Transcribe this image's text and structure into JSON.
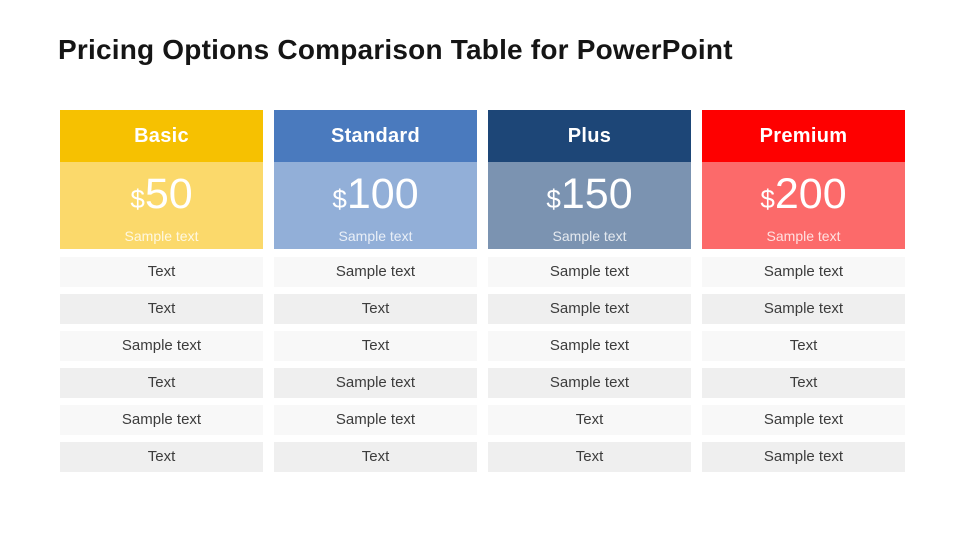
{
  "page": {
    "title": "Pricing Options Comparison Table for PowerPoint",
    "background_color": "#ffffff",
    "title_color": "#151515"
  },
  "table": {
    "row_light_color": "#f8f8f8",
    "row_dark_color": "#efefef",
    "row_text_color": "#3c3c3c"
  },
  "plans": [
    {
      "name": "Basic",
      "currency": "$",
      "price": "50",
      "subtitle": "Sample text",
      "header_color": "#f6c101",
      "body_color": "#fbd96b",
      "features": [
        "Text",
        "Text",
        "Sample text",
        "Text",
        "Sample text",
        "Text"
      ]
    },
    {
      "name": "Standard",
      "currency": "$",
      "price": "100",
      "subtitle": "Sample text",
      "header_color": "#4a7abe",
      "body_color": "#92afd8",
      "features": [
        "Sample text",
        "Text",
        "Text",
        "Sample text",
        "Sample text",
        "Text"
      ]
    },
    {
      "name": "Plus",
      "currency": "$",
      "price": "150",
      "subtitle": "Sample text",
      "header_color": "#1d4677",
      "body_color": "#7b93b1",
      "features": [
        "Sample text",
        "Sample text",
        "Sample text",
        "Sample text",
        "Text",
        "Text"
      ]
    },
    {
      "name": "Premium",
      "currency": "$",
      "price": "200",
      "subtitle": "Sample text",
      "header_color": "#fe0000",
      "body_color": "#fc6a6a",
      "features": [
        "Sample text",
        "Sample text",
        "Text",
        "Text",
        "Sample text",
        "Sample text"
      ]
    }
  ]
}
